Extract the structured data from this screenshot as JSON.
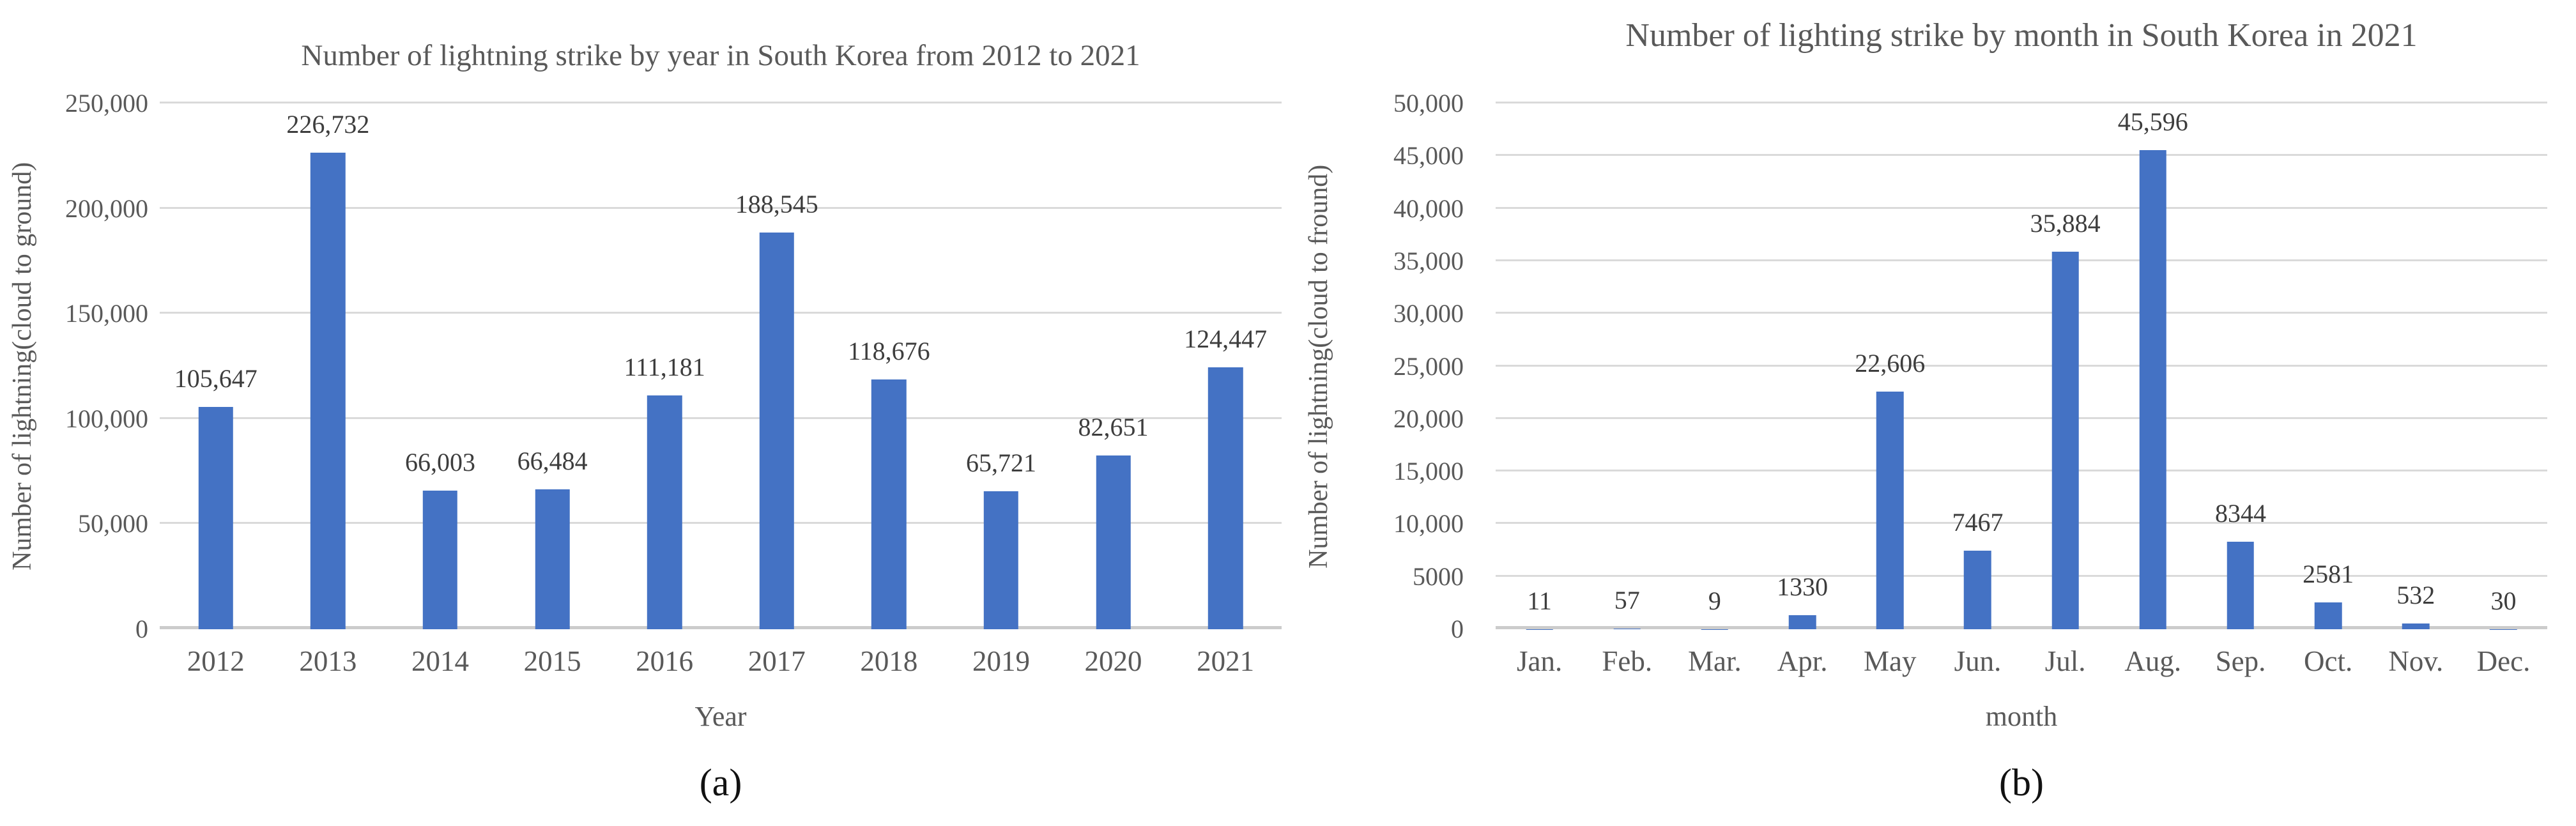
{
  "chart_data": [
    {
      "type": "bar",
      "title": "Number of lightning strike by year in South Korea from 2012 to 2021",
      "ylabel": "Number of lightning(cloud to ground)",
      "xlabel": "Year",
      "caption": "(a)",
      "bar_color": "#4472C4",
      "gridline_color": "#dadada",
      "text_color": "#595959",
      "ymax": 250000,
      "ylim": [
        0,
        250000
      ],
      "ytick_step": 50000,
      "yticks": [
        "250,000",
        "200,000",
        "150,000",
        "100,000",
        "50,000",
        "0"
      ],
      "categories": [
        "2012",
        "2013",
        "2014",
        "2015",
        "2016",
        "2017",
        "2018",
        "2019",
        "2020",
        "2021"
      ],
      "values": [
        105647,
        226732,
        66003,
        66484,
        111181,
        188545,
        118676,
        65721,
        82651,
        124447
      ],
      "value_labels": [
        "105,647",
        "226,732",
        "66,003",
        "66,484",
        "111,181",
        "188,545",
        "118,676",
        "65,721",
        "82,651",
        "124,447"
      ],
      "legend": "none",
      "grid": "horizontal"
    },
    {
      "type": "bar",
      "title": "Number of lighting strike by month in South Korea in 2021",
      "ylabel": "Number of lightning(cloud to fround)",
      "xlabel": "month",
      "caption": "(b)",
      "bar_color": "#4472C4",
      "gridline_color": "#dadada",
      "text_color": "#595959",
      "ymax": 50000,
      "ylim": [
        0,
        50000
      ],
      "ytick_step": 5000,
      "yticks": [
        "50,000",
        "45,000",
        "40,000",
        "35,000",
        "30,000",
        "25,000",
        "20,000",
        "15,000",
        "10,000",
        "5000",
        "0"
      ],
      "categories": [
        "Jan.",
        "Feb.",
        "Mar.",
        "Apr.",
        "May",
        "Jun.",
        "Jul.",
        "Aug.",
        "Sep.",
        "Oct.",
        "Nov.",
        "Dec."
      ],
      "values": [
        11,
        57,
        9,
        1330,
        22606,
        7467,
        35884,
        45596,
        8344,
        2581,
        532,
        30
      ],
      "value_labels": [
        "11",
        "57",
        "9",
        "1330",
        "22,606",
        "7467",
        "35,884",
        "45,596",
        "8344",
        "2581",
        "532",
        "30"
      ],
      "legend": "none",
      "grid": "horizontal"
    }
  ]
}
